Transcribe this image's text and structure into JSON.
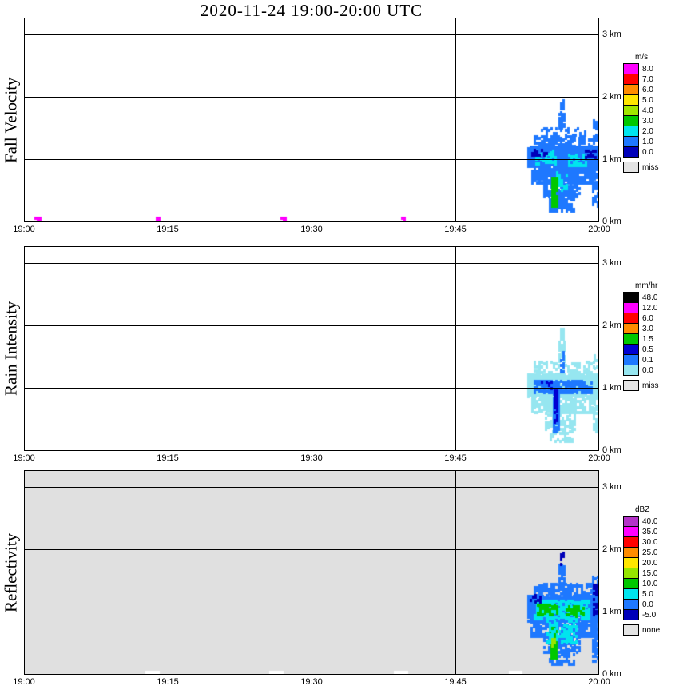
{
  "title": "2020-11-24  19:00-20:00 UTC",
  "chart_data": {
    "type": "heatmap",
    "description": "Micro rain radar time-height quicklook, three stacked panels sharing time axis 19:00-20:00 UTC and height axis 0-3 km",
    "x_axis": {
      "range_minutes": [
        0,
        60
      ],
      "ticks": [
        {
          "m": 0,
          "label": "19:00"
        },
        {
          "m": 15,
          "label": "19:15"
        },
        {
          "m": 30,
          "label": "19:30"
        },
        {
          "m": 45,
          "label": "19:45"
        },
        {
          "m": 60,
          "label": "20:00"
        }
      ]
    },
    "y_axis": {
      "range_km": [
        0,
        3.25
      ],
      "ticks": [
        {
          "km": 3,
          "label": "3 km"
        },
        {
          "km": 2,
          "label": "2 km"
        },
        {
          "km": 1,
          "label": "1 km"
        },
        {
          "km": 0,
          "label": "0 km"
        }
      ]
    },
    "echo_encoding": "rects: t=[start_min,end_min], h=[bottom_km,top_km], v=palette value, d=fill density",
    "panels": [
      {
        "id": "fall-velocity",
        "label": "Fall Velocity",
        "units": "m/s",
        "background": "#ffffff",
        "palette": [
          {
            "value": "8.0",
            "label": "8.0",
            "color": "#ff00ff"
          },
          {
            "value": "7.0",
            "label": "7.0",
            "color": "#ff0000"
          },
          {
            "value": "6.0",
            "label": "6.0",
            "color": "#ff8c00"
          },
          {
            "value": "5.0",
            "label": "5.0",
            "color": "#ffe600"
          },
          {
            "value": "4.0",
            "label": "4.0",
            "color": "#a0e600"
          },
          {
            "value": "3.0",
            "label": "3.0",
            "color": "#00c800"
          },
          {
            "value": "2.0",
            "label": "2.0",
            "color": "#00e5ee"
          },
          {
            "value": "1.0",
            "label": "1.0",
            "color": "#1e78ff"
          },
          {
            "value": "0.0",
            "label": "0.0",
            "color": "#0000b9"
          },
          {
            "value": "miss",
            "label": "miss",
            "color": "#e4e4e4",
            "gap": true
          }
        ],
        "echo": [
          {
            "t": [
              52.6,
              60.0
            ],
            "h": [
              0.88,
              1.2
            ],
            "v": "1.0",
            "d": 0.97
          },
          {
            "t": [
              53.0,
              59.8
            ],
            "h": [
              0.62,
              0.88
            ],
            "v": "1.0",
            "d": 0.75
          },
          {
            "t": [
              53.2,
              59.6
            ],
            "h": [
              1.2,
              1.38
            ],
            "v": "1.0",
            "d": 0.55
          },
          {
            "t": [
              54.0,
              58.6
            ],
            "h": [
              1.38,
              1.5
            ],
            "v": "1.0",
            "d": 0.3
          },
          {
            "t": [
              55.8,
              56.5
            ],
            "h": [
              1.5,
              1.72
            ],
            "v": "1.0",
            "d": 0.75
          },
          {
            "t": [
              55.95,
              56.3
            ],
            "h": [
              1.72,
              1.93
            ],
            "v": "1.0",
            "d": 0.6
          },
          {
            "t": [
              54.2,
              58.2
            ],
            "h": [
              0.4,
              0.62
            ],
            "v": "1.0",
            "d": 0.6
          },
          {
            "t": [
              54.8,
              57.4
            ],
            "h": [
              0.16,
              0.4
            ],
            "v": "1.0",
            "d": 0.65
          },
          {
            "t": [
              53.4,
              55.6
            ],
            "h": [
              0.92,
              1.14
            ],
            "v": "2.0",
            "d": 0.5
          },
          {
            "t": [
              56.8,
              58.8
            ],
            "h": [
              0.9,
              1.08
            ],
            "v": "2.0",
            "d": 0.45
          },
          {
            "t": [
              55.3,
              56.6
            ],
            "h": [
              0.5,
              0.8
            ],
            "v": "2.0",
            "d": 0.3
          },
          {
            "t": [
              53.0,
              54.6
            ],
            "h": [
              1.06,
              1.16
            ],
            "v": "0.0",
            "d": 0.3
          },
          {
            "t": [
              58.6,
              59.9
            ],
            "h": [
              1.02,
              1.14
            ],
            "v": "0.0",
            "d": 0.35
          },
          {
            "t": [
              55.05,
              55.6
            ],
            "h": [
              0.24,
              0.7
            ],
            "v": "3.0",
            "d": 0.85
          },
          {
            "t": [
              59.3,
              60.0
            ],
            "h": [
              0.24,
              0.62
            ],
            "v": "1.0",
            "d": 0.55
          },
          {
            "t": [
              59.45,
              60.0
            ],
            "h": [
              1.3,
              1.62
            ],
            "v": "1.0",
            "d": 0.5
          },
          {
            "t": [
              1.0,
              1.6
            ],
            "h": [
              0.02,
              0.07
            ],
            "v": "8.0",
            "d": 0.9
          },
          {
            "t": [
              13.7,
              14.2
            ],
            "h": [
              0.02,
              0.07
            ],
            "v": "8.0",
            "d": 0.9
          },
          {
            "t": [
              26.7,
              27.4
            ],
            "h": [
              0.02,
              0.07
            ],
            "v": "8.0",
            "d": 0.9
          },
          {
            "t": [
              39.4,
              39.9
            ],
            "h": [
              0.02,
              0.07
            ],
            "v": "8.0",
            "d": 0.9
          }
        ]
      },
      {
        "id": "rain-intensity",
        "label": "Rain Intensity",
        "units": "mm/hr",
        "background": "#ffffff",
        "palette": [
          {
            "value": "48.0",
            "label": "48.0",
            "color": "#000000"
          },
          {
            "value": "12.0",
            "label": "12.0",
            "color": "#ff00ff"
          },
          {
            "value": "6.0",
            "label": "6.0",
            "color": "#ff0000"
          },
          {
            "value": "3.0",
            "label": "3.0",
            "color": "#ff8c00"
          },
          {
            "value": "1.5",
            "label": "1.5",
            "color": "#00c800"
          },
          {
            "value": "0.5",
            "label": "0.5",
            "color": "#0000d2"
          },
          {
            "value": "0.1",
            "label": "0.1",
            "color": "#1e78ff"
          },
          {
            "value": "0.0",
            "label": "0.0",
            "color": "#96e6f0"
          },
          {
            "value": "miss",
            "label": "miss",
            "color": "#e4e4e4",
            "gap": true
          }
        ],
        "echo": [
          {
            "t": [
              52.6,
              60.0
            ],
            "h": [
              0.86,
              1.22
            ],
            "v": "0.0",
            "d": 0.92
          },
          {
            "t": [
              53.0,
              59.8
            ],
            "h": [
              0.6,
              0.86
            ],
            "v": "0.0",
            "d": 0.6
          },
          {
            "t": [
              53.2,
              59.6
            ],
            "h": [
              1.22,
              1.42
            ],
            "v": "0.0",
            "d": 0.45
          },
          {
            "t": [
              55.8,
              56.5
            ],
            "h": [
              1.42,
              1.75
            ],
            "v": "0.0",
            "d": 0.7
          },
          {
            "t": [
              55.95,
              56.3
            ],
            "h": [
              1.75,
              1.95
            ],
            "v": "0.0",
            "d": 0.5
          },
          {
            "t": [
              54.4,
              57.6
            ],
            "h": [
              0.3,
              0.6
            ],
            "v": "0.0",
            "d": 0.5
          },
          {
            "t": [
              54.9,
              57.2
            ],
            "h": [
              0.14,
              0.3
            ],
            "v": "0.0",
            "d": 0.45
          },
          {
            "t": [
              53.2,
              59.4
            ],
            "h": [
              0.92,
              1.12
            ],
            "v": "0.1",
            "d": 0.7
          },
          {
            "t": [
              55.2,
              55.75
            ],
            "h": [
              0.3,
              1.0
            ],
            "v": "0.1",
            "d": 0.8
          },
          {
            "t": [
              55.3,
              55.65
            ],
            "h": [
              0.45,
              0.95
            ],
            "v": "0.5",
            "d": 0.6
          },
          {
            "t": [
              54.0,
              55.2
            ],
            "h": [
              0.98,
              1.1
            ],
            "v": "0.5",
            "d": 0.3
          },
          {
            "t": [
              56.0,
              56.35
            ],
            "h": [
              1.2,
              1.6
            ],
            "v": "0.1",
            "d": 0.5
          },
          {
            "t": [
              59.4,
              60.0
            ],
            "h": [
              0.3,
              0.7
            ],
            "v": "0.0",
            "d": 0.4
          },
          {
            "t": [
              59.5,
              60.0
            ],
            "h": [
              1.3,
              1.55
            ],
            "v": "0.0",
            "d": 0.4
          }
        ]
      },
      {
        "id": "reflectivity",
        "label": "Reflectivity",
        "units": "dBZ",
        "background": "#e0e0e0",
        "palette": [
          {
            "value": "40.0",
            "label": "40.0",
            "color": "#b432c8"
          },
          {
            "value": "35.0",
            "label": "35.0",
            "color": "#ff00ff"
          },
          {
            "value": "30.0",
            "label": "30.0",
            "color": "#ff0000"
          },
          {
            "value": "25.0",
            "label": "25.0",
            "color": "#ff8c00"
          },
          {
            "value": "20.0",
            "label": "20.0",
            "color": "#ffe600"
          },
          {
            "value": "15.0",
            "label": "15.0",
            "color": "#96e600"
          },
          {
            "value": "10.0",
            "label": "10.0",
            "color": "#00c800"
          },
          {
            "value": "5.0",
            "label": "5.0",
            "color": "#00e5ee"
          },
          {
            "value": "0.0",
            "label": "0.0",
            "color": "#1e78ff"
          },
          {
            "value": "-5.0",
            "label": "-5.0",
            "color": "#0000b9"
          },
          {
            "value": "none",
            "label": "none",
            "color": "#e4e4e4",
            "gap": true
          }
        ],
        "echo": [
          {
            "t": [
              52.6,
              60.0
            ],
            "h": [
              0.85,
              1.25
            ],
            "v": "0.0",
            "d": 0.9
          },
          {
            "t": [
              52.9,
              59.8
            ],
            "h": [
              0.6,
              0.85
            ],
            "v": "0.0",
            "d": 0.7
          },
          {
            "t": [
              53.2,
              59.6
            ],
            "h": [
              1.25,
              1.45
            ],
            "v": "0.0",
            "d": 0.5
          },
          {
            "t": [
              55.8,
              56.5
            ],
            "h": [
              1.45,
              1.75
            ],
            "v": "0.0",
            "d": 0.7
          },
          {
            "t": [
              55.95,
              56.3
            ],
            "h": [
              1.75,
              1.95
            ],
            "v": "-5.0",
            "d": 0.5
          },
          {
            "t": [
              53.2,
              59.2
            ],
            "h": [
              0.88,
              1.18
            ],
            "v": "5.0",
            "d": 0.7
          },
          {
            "t": [
              53.6,
              55.8
            ],
            "h": [
              0.95,
              1.12
            ],
            "v": "10.0",
            "d": 0.6
          },
          {
            "t": [
              56.6,
              58.6
            ],
            "h": [
              0.92,
              1.08
            ],
            "v": "10.0",
            "d": 0.5
          },
          {
            "t": [
              54.2,
              58.2
            ],
            "h": [
              0.35,
              0.6
            ],
            "v": "0.0",
            "d": 0.6
          },
          {
            "t": [
              54.8,
              57.4
            ],
            "h": [
              0.15,
              0.35
            ],
            "v": "0.0",
            "d": 0.55
          },
          {
            "t": [
              55.0,
              55.6
            ],
            "h": [
              0.25,
              0.75
            ],
            "v": "10.0",
            "d": 0.8
          },
          {
            "t": [
              54.6,
              57.8
            ],
            "h": [
              0.5,
              0.85
            ],
            "v": "5.0",
            "d": 0.5
          },
          {
            "t": [
              55.1,
              55.45
            ],
            "h": [
              0.45,
              0.58
            ],
            "v": "15.0",
            "d": 0.5
          },
          {
            "t": [
              52.8,
              54.2
            ],
            "h": [
              1.15,
              1.3
            ],
            "v": "-5.0",
            "d": 0.3
          },
          {
            "t": [
              59.3,
              60.0
            ],
            "h": [
              0.2,
              1.6
            ],
            "v": "0.0",
            "d": 0.55
          },
          {
            "t": [
              59.45,
              60.0
            ],
            "h": [
              0.9,
              1.45
            ],
            "v": "-5.0",
            "d": 0.45
          },
          {
            "t": [
              12.6,
              13.9
            ],
            "h": [
              0.0,
              0.05
            ],
            "v": "white",
            "d": 1
          },
          {
            "t": [
              25.6,
              26.9
            ],
            "h": [
              0.0,
              0.05
            ],
            "v": "white",
            "d": 1
          },
          {
            "t": [
              38.6,
              39.9
            ],
            "h": [
              0.0,
              0.05
            ],
            "v": "white",
            "d": 1
          },
          {
            "t": [
              50.6,
              52.0
            ],
            "h": [
              0.0,
              0.05
            ],
            "v": "white",
            "d": 1
          }
        ]
      }
    ]
  }
}
